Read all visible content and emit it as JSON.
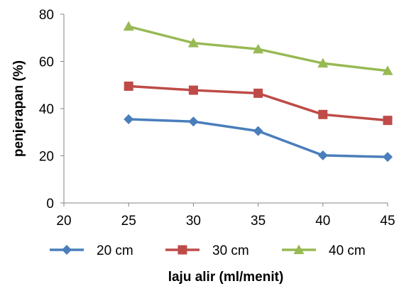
{
  "chart_data": {
    "type": "line",
    "title": "",
    "xlabel": "laju alir (ml/menit)",
    "ylabel": "penjerapan (%)",
    "x_ticks": [
      20,
      25,
      30,
      35,
      40,
      45
    ],
    "y_ticks": [
      0,
      20,
      40,
      60,
      80
    ],
    "xlim": [
      20,
      45
    ],
    "ylim": [
      0,
      80
    ],
    "grid": false,
    "legend_position": "bottom",
    "x": [
      25,
      30,
      35,
      40,
      45
    ],
    "series": [
      {
        "name": "20 cm",
        "values": [
          35.5,
          34.5,
          30.5,
          20.2,
          19.5
        ],
        "color": "#4a7ebb",
        "marker": "diamond"
      },
      {
        "name": "30 cm",
        "values": [
          49.5,
          47.8,
          46.5,
          37.5,
          35.0
        ],
        "color": "#be4b48",
        "marker": "square"
      },
      {
        "name": "40 cm",
        "values": [
          74.8,
          67.8,
          65.2,
          59.2,
          56.0
        ],
        "color": "#98b954",
        "marker": "triangle"
      }
    ]
  }
}
